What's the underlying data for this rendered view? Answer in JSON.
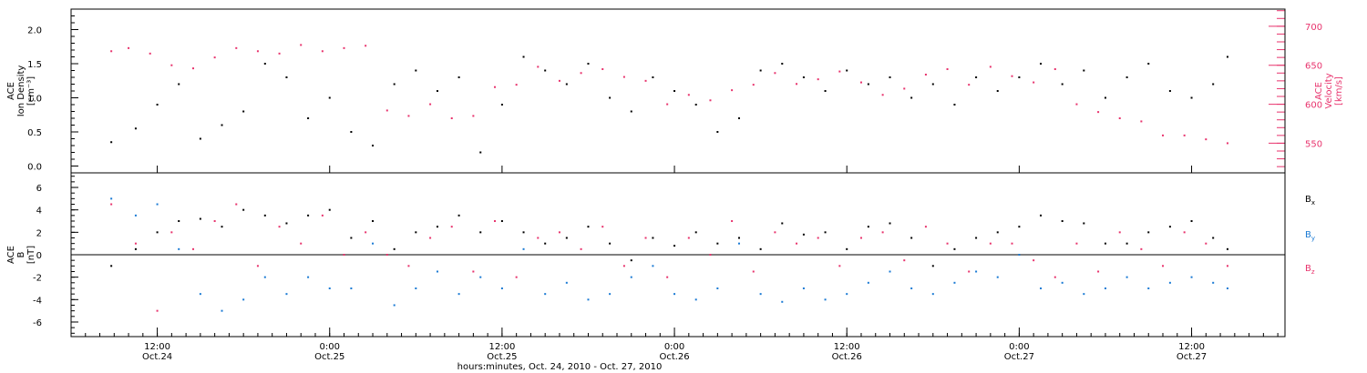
{
  "colors": {
    "density": "#000000",
    "velocity": "#e8336d",
    "bx": "#000000",
    "by": "#1a7ad4",
    "bz": "#e8336d",
    "axis": "#000000"
  },
  "chart_data": [
    {
      "type": "scatter",
      "panel": "top",
      "ylabel_lines": [
        "ACE",
        "Ion Density",
        "[cm⁻³]"
      ],
      "y_ticks": [
        "0.0",
        "0.5",
        "1.0",
        "1.5",
        "2.0"
      ],
      "ylim": [
        -0.1,
        2.3
      ],
      "y2label_lines": [
        "ACE",
        "Velocity",
        "[km/s]"
      ],
      "y2_ticks": [
        "550",
        "600",
        "650",
        "700"
      ],
      "y2lim": [
        512,
        722
      ],
      "series": [
        {
          "key": "density",
          "axis": "left",
          "marker": "dot",
          "x": [
            2.8,
            4.5,
            6.0,
            7.5,
            9.0,
            10.5,
            12.0,
            13.5,
            15.0,
            16.5,
            18.0,
            19.5,
            21.0,
            22.5,
            24.0,
            25.5,
            27.0,
            28.5,
            30.0,
            31.5,
            33.0,
            34.5,
            36.0,
            37.5,
            39.0,
            40.5,
            42.0,
            43.5,
            45.0,
            46.5,
            48.0,
            49.5,
            51.0,
            52.5,
            54.0,
            55.5,
            57.0,
            58.5,
            60.0,
            61.5,
            63.0,
            64.5,
            66.0,
            67.5,
            69.0,
            70.5,
            72.0,
            73.5,
            75.0,
            76.5,
            78.0,
            79.5,
            80.5
          ],
          "y": [
            0.35,
            0.55,
            0.9,
            1.2,
            0.4,
            0.6,
            0.8,
            1.5,
            1.3,
            0.7,
            1.0,
            0.5,
            0.3,
            1.2,
            1.4,
            1.1,
            1.3,
            0.2,
            0.9,
            1.6,
            1.4,
            1.2,
            1.5,
            1.0,
            0.8,
            1.3,
            1.1,
            0.9,
            0.5,
            0.7,
            1.4,
            1.5,
            1.3,
            1.1,
            1.4,
            1.2,
            1.3,
            1.0,
            1.2,
            0.9,
            1.3,
            1.1,
            1.3,
            1.5,
            1.2,
            1.4,
            1.0,
            1.3,
            1.5,
            1.1,
            1.0,
            1.2,
            1.6
          ]
        },
        {
          "key": "velocity",
          "axis": "right",
          "marker": "dot",
          "x": [
            2.8,
            4.0,
            5.5,
            7.0,
            8.5,
            10.0,
            11.5,
            13.0,
            14.5,
            16.0,
            17.5,
            19.0,
            20.5,
            22.0,
            23.5,
            25.0,
            26.5,
            28.0,
            29.5,
            31.0,
            32.5,
            34.0,
            35.5,
            37.0,
            38.5,
            40.0,
            41.5,
            43.0,
            44.5,
            46.0,
            47.5,
            49.0,
            50.5,
            52.0,
            53.5,
            55.0,
            56.5,
            58.0,
            59.5,
            61.0,
            62.5,
            64.0,
            65.5,
            67.0,
            68.5,
            70.0,
            71.5,
            73.0,
            74.5,
            76.0,
            77.5,
            79.0,
            80.5
          ],
          "y": [
            668,
            672,
            665,
            650,
            646,
            660,
            672,
            668,
            665,
            676,
            668,
            672,
            675,
            592,
            585,
            600,
            582,
            585,
            622,
            625,
            648,
            630,
            640,
            645,
            635,
            630,
            600,
            612,
            605,
            618,
            625,
            640,
            626,
            632,
            642,
            628,
            612,
            620,
            638,
            645,
            625,
            648,
            636,
            628,
            645,
            600,
            590,
            582,
            578,
            560,
            560,
            555,
            550
          ]
        }
      ]
    },
    {
      "type": "scatter",
      "panel": "bottom",
      "ylabel_lines": [
        "ACE",
        "B",
        "[nT]"
      ],
      "y_ticks": [
        "-6",
        "-4",
        "-2",
        "0",
        "2",
        "4",
        "6"
      ],
      "ylim": [
        -7.3,
        7.3
      ],
      "zero_line": true,
      "legend_position": "right",
      "series": [
        {
          "key": "bx",
          "name": "Bx",
          "name_main": "B",
          "name_sub": "x",
          "marker": "dot",
          "x": [
            2.8,
            4.5,
            6.0,
            7.5,
            9.0,
            10.5,
            12.0,
            13.5,
            15.0,
            16.5,
            18.0,
            19.5,
            21.0,
            22.5,
            24.0,
            25.5,
            27.0,
            28.5,
            30.0,
            31.5,
            33.0,
            34.5,
            36.0,
            37.5,
            39.0,
            40.5,
            42.0,
            43.5,
            45.0,
            46.5,
            48.0,
            49.5,
            51.0,
            52.5,
            54.0,
            55.5,
            57.0,
            58.5,
            60.0,
            61.5,
            63.0,
            64.5,
            66.0,
            67.5,
            69.0,
            70.5,
            72.0,
            73.5,
            75.0,
            76.5,
            78.0,
            79.5,
            80.5
          ],
          "y": [
            -1.0,
            0.5,
            2.0,
            3.0,
            3.2,
            2.5,
            4.0,
            3.5,
            2.8,
            3.5,
            4.0,
            1.5,
            3.0,
            0.5,
            2.0,
            2.5,
            3.5,
            2.0,
            3.0,
            2.0,
            1.0,
            1.5,
            2.5,
            1.0,
            -0.5,
            1.5,
            0.8,
            2.0,
            1.0,
            1.5,
            0.5,
            2.8,
            1.8,
            2.0,
            0.5,
            2.5,
            2.8,
            1.5,
            -1.0,
            0.5,
            1.5,
            2.0,
            2.5,
            3.5,
            3.0,
            2.8,
            1.0,
            1.0,
            2.0,
            2.5,
            3.0,
            1.5,
            0.5
          ]
        },
        {
          "key": "by",
          "name": "By",
          "name_main": "B",
          "name_sub": "y",
          "marker": "dot",
          "x": [
            2.8,
            4.5,
            6.0,
            7.5,
            9.0,
            10.5,
            12.0,
            13.5,
            15.0,
            16.5,
            18.0,
            19.5,
            21.0,
            22.5,
            24.0,
            25.5,
            27.0,
            28.5,
            30.0,
            31.5,
            33.0,
            34.5,
            36.0,
            37.5,
            39.0,
            40.5,
            42.0,
            43.5,
            45.0,
            46.5,
            48.0,
            49.5,
            51.0,
            52.5,
            54.0,
            55.5,
            57.0,
            58.5,
            60.0,
            61.5,
            63.0,
            64.5,
            66.0,
            67.5,
            69.0,
            70.5,
            72.0,
            73.5,
            75.0,
            76.5,
            78.0,
            79.5,
            80.5
          ],
          "y": [
            5.0,
            3.5,
            4.5,
            0.5,
            -3.5,
            -5.0,
            -4.0,
            -2.0,
            -3.5,
            -2.0,
            -3.0,
            -3.0,
            1.0,
            -4.5,
            -3.0,
            -1.5,
            -3.5,
            -2.0,
            -3.0,
            0.5,
            -3.5,
            -2.5,
            -4.0,
            -3.5,
            -2.0,
            -1.0,
            -3.5,
            -4.0,
            -3.0,
            1.0,
            -3.5,
            -4.2,
            -3.0,
            -4.0,
            -3.5,
            -2.5,
            -1.5,
            -3.0,
            -3.5,
            -2.5,
            -1.5,
            -2.0,
            0.0,
            -3.0,
            -2.5,
            -3.5,
            -3.0,
            -2.0,
            -3.0,
            -2.5,
            -2.0,
            -2.5,
            -3.0
          ]
        },
        {
          "key": "bz",
          "name": "Bz",
          "name_main": "B",
          "name_sub": "z",
          "marker": "dot",
          "x": [
            2.8,
            4.5,
            6.0,
            7.0,
            8.5,
            10.0,
            11.5,
            13.0,
            14.5,
            16.0,
            17.5,
            19.0,
            20.5,
            22.0,
            23.5,
            25.0,
            26.5,
            28.0,
            29.5,
            31.0,
            32.5,
            34.0,
            35.5,
            37.0,
            38.5,
            40.0,
            41.5,
            43.0,
            44.5,
            46.0,
            47.5,
            49.0,
            50.5,
            52.0,
            53.5,
            55.0,
            56.5,
            58.0,
            59.5,
            61.0,
            62.5,
            64.0,
            65.5,
            67.0,
            68.5,
            70.0,
            71.5,
            73.0,
            74.5,
            76.0,
            77.5,
            79.0,
            80.5
          ],
          "y": [
            4.5,
            1.0,
            -5.0,
            2.0,
            0.5,
            3.0,
            4.5,
            -1.0,
            2.5,
            1.0,
            3.5,
            0.0,
            2.0,
            0.0,
            -1.0,
            1.5,
            2.5,
            -1.5,
            3.0,
            -2.0,
            1.5,
            2.0,
            0.5,
            2.5,
            -1.0,
            1.5,
            -2.0,
            1.5,
            0.0,
            3.0,
            -1.5,
            2.0,
            1.0,
            1.5,
            -1.0,
            1.5,
            2.0,
            -0.5,
            2.5,
            1.0,
            -1.5,
            1.0,
            1.0,
            -0.5,
            -2.0,
            1.0,
            -1.5,
            2.0,
            0.5,
            -1.0,
            2.0,
            1.0,
            -1.0
          ]
        }
      ]
    }
  ],
  "x_axis": {
    "xlim": [
      0,
      84.5
    ],
    "major_ticks": [
      {
        "x": 6,
        "time": "12:00",
        "date": "Oct.24"
      },
      {
        "x": 18,
        "time": "0:00",
        "date": "Oct.25"
      },
      {
        "x": 30,
        "time": "12:00",
        "date": "Oct.25"
      },
      {
        "x": 42,
        "time": "0:00",
        "date": "Oct.26"
      },
      {
        "x": 54,
        "time": "12:00",
        "date": "Oct.26"
      },
      {
        "x": 66,
        "time": "0:00",
        "date": "Oct.27"
      },
      {
        "x": 78,
        "time": "12:00",
        "date": "Oct.27"
      }
    ],
    "title": "hours:minutes, Oct. 24, 2010 - Oct. 27, 2010"
  }
}
